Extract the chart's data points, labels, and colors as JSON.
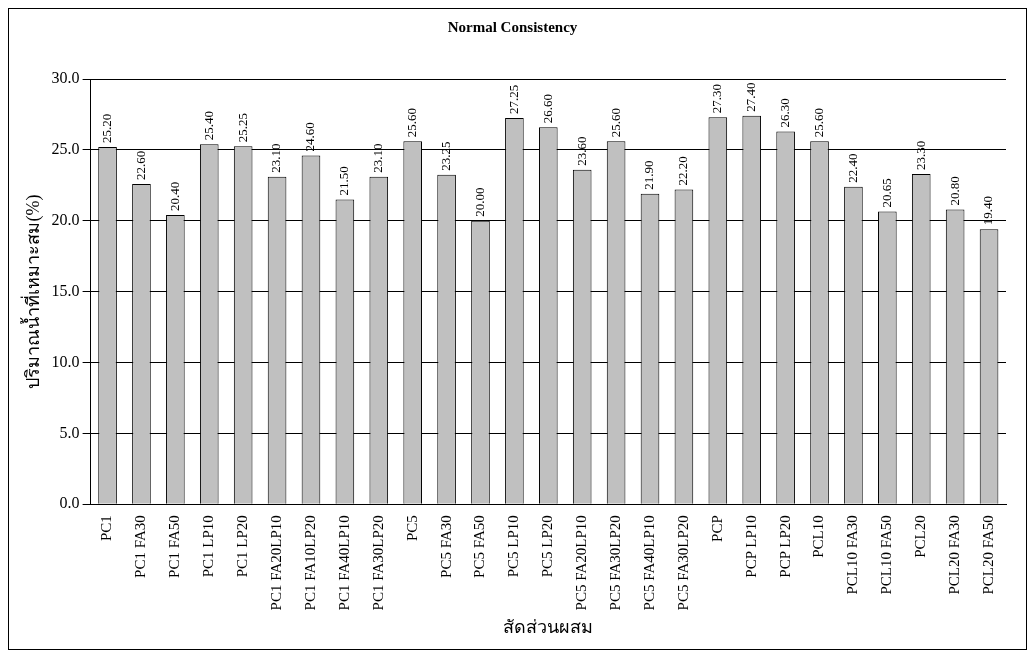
{
  "chart_data": {
    "type": "bar",
    "title": "Normal Consistency",
    "xlabel": "สัดส่วนผสม",
    "ylabel": "ปริมาณน้ำที่เหมาะสม(%)",
    "categories": [
      "PC1",
      "PC1 FA30",
      "PC1 FA50",
      "PC1 LP10",
      "PC1 LP20",
      "PC1 FA20LP10",
      "PC1 FA10LP20",
      "PC1 FA40LP10",
      "PC1 FA30LP20",
      "PC5",
      "PC5 FA30",
      "PC5 FA50",
      "PC5 LP10",
      "PC5 LP20",
      "PC5 FA20LP10",
      "PC5 FA30LP20",
      "PC5 FA40LP10",
      "PC5 FA30LP20",
      "PCP",
      "PCP LP10",
      "PCP LP20",
      "PCL10",
      "PCL10 FA30",
      "PCL10 FA50",
      "PCL20",
      "PCL20 FA30",
      "PCL20 FA50"
    ],
    "values": [
      25.2,
      22.6,
      20.4,
      25.4,
      25.25,
      23.1,
      24.6,
      21.5,
      23.1,
      25.6,
      23.25,
      20.0,
      27.25,
      26.6,
      23.6,
      25.6,
      21.9,
      22.2,
      27.3,
      27.4,
      26.3,
      25.6,
      22.4,
      20.65,
      23.3,
      20.8,
      19.4
    ],
    "value_labels": [
      "25.20",
      "22.60",
      "20.40",
      "25.40",
      "25.25",
      "23.10",
      "24.60",
      "21.50",
      "23.10",
      "25.60",
      "23.25",
      "20.00",
      "27.25",
      "26.60",
      "23.60",
      "25.60",
      "21.90",
      "22.20",
      "27.30",
      "27.40",
      "26.30",
      "25.60",
      "22.40",
      "20.65",
      "23.30",
      "20.80",
      "19.40"
    ],
    "color": "#c0c0c0",
    "ylim": [
      0,
      30
    ],
    "yticks": [
      {
        "value": 0,
        "label": "0.0"
      },
      {
        "value": 5,
        "label": "5.0"
      },
      {
        "value": 10,
        "label": "10.0"
      },
      {
        "value": 15,
        "label": "15.0"
      },
      {
        "value": 20,
        "label": "20.0"
      },
      {
        "value": 25,
        "label": "25.0"
      },
      {
        "value": 30,
        "label": "30.0"
      }
    ],
    "grid": "y",
    "legend": false
  }
}
